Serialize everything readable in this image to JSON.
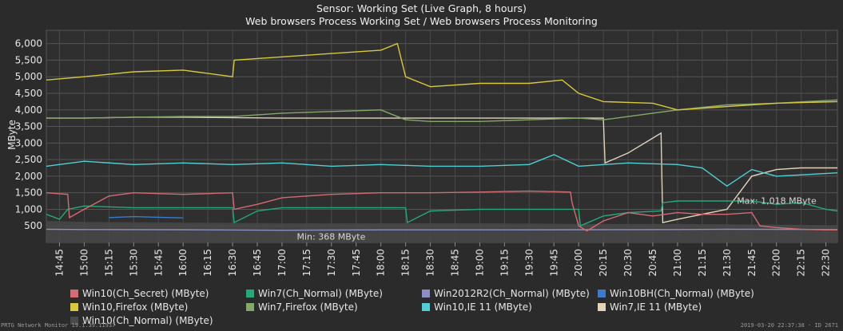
{
  "header": {
    "title": "Sensor: Working Set (Live Graph, 8 hours)",
    "subtitle": "Web browsers Process Working Set / Web browsers Process Monitoring"
  },
  "footer": {
    "left": "PRTG Network Monitor 19.1.39.11937",
    "right": "2019-03-20 22:37:38 - ID 2671"
  },
  "chart_data": {
    "type": "line",
    "title": "Sensor: Working Set (Live Graph, 8 hours)",
    "subtitle": "Web browsers Process Working Set / Web browsers Process Monitoring",
    "ylabel": "MByte",
    "ylim": [
      0,
      6400
    ],
    "yticks": [
      500,
      1000,
      1500,
      2000,
      2500,
      3000,
      3500,
      4000,
      4500,
      5000,
      5500,
      6000
    ],
    "ytick_labels": [
      "500",
      "1,000",
      "1,500",
      "2,000",
      "2,500",
      "3,000",
      "3,500",
      "4,000",
      "4,500",
      "5,000",
      "5,500",
      "6,000"
    ],
    "x_labels": [
      "14:45",
      "15:00",
      "15:15",
      "15:30",
      "15:45",
      "16:00",
      "16:15",
      "16:30",
      "16:45",
      "17:00",
      "17:15",
      "17:30",
      "17:45",
      "18:00",
      "18:15",
      "18:30",
      "18:45",
      "19:00",
      "19:15",
      "19:30",
      "19:45",
      "20:00",
      "20:15",
      "20:30",
      "20:45",
      "21:00",
      "21:15",
      "21:30",
      "21:45",
      "22:00",
      "22:15",
      "22:30"
    ],
    "x_start": "14:37",
    "x_end": "22:37",
    "grid": true,
    "annotations": [
      {
        "text": "Min: 368 MByte",
        "x": "17:09",
        "y": 368
      },
      {
        "text": "Max: 1,018 MByte",
        "x": "21:36",
        "y": 1018
      }
    ],
    "legend": [
      "Win10(Ch_Secret) (MByte)",
      "Win7(Ch_Normal) (MByte)",
      "Win2012R2(Ch_Normal) (MByte)",
      "Win10BH(Ch_Normal) (MByte)",
      "Win10,Firefox (MByte)",
      "Win7,Firefox (MByte)",
      "Win10,IE 11 (MByte)",
      "Win7,IE 11 (MByte)",
      "Win10(Ch_Normal) (MByte)"
    ],
    "series": [
      {
        "name": "Win10(Ch_Secret) (MByte)",
        "color": "#d36b72",
        "points": [
          [
            "14:37",
            1500
          ],
          [
            "14:50",
            1450
          ],
          [
            "14:51",
            750
          ],
          [
            "15:00",
            1000
          ],
          [
            "15:15",
            1400
          ],
          [
            "15:30",
            1500
          ],
          [
            "16:00",
            1450
          ],
          [
            "16:30",
            1500
          ],
          [
            "16:31",
            1000
          ],
          [
            "16:45",
            1150
          ],
          [
            "17:00",
            1350
          ],
          [
            "17:30",
            1450
          ],
          [
            "18:00",
            1500
          ],
          [
            "18:30",
            1500
          ],
          [
            "19:00",
            1520
          ],
          [
            "19:30",
            1550
          ],
          [
            "19:55",
            1520
          ],
          [
            "19:56",
            1200
          ],
          [
            "20:00",
            500
          ],
          [
            "20:05",
            350
          ],
          [
            "20:15",
            650
          ],
          [
            "20:30",
            900
          ],
          [
            "20:45",
            800
          ],
          [
            "21:00",
            900
          ],
          [
            "21:15",
            850
          ],
          [
            "21:30",
            850
          ],
          [
            "21:45",
            900
          ],
          [
            "21:50",
            500
          ],
          [
            "22:00",
            450
          ],
          [
            "22:15",
            400
          ],
          [
            "22:30",
            380
          ],
          [
            "22:37",
            380
          ]
        ]
      },
      {
        "name": "Win7(Ch_Normal) (MByte)",
        "color": "#24a979",
        "points": [
          [
            "14:37",
            850
          ],
          [
            "14:45",
            700
          ],
          [
            "14:50",
            1000
          ],
          [
            "15:00",
            1100
          ],
          [
            "15:30",
            1050
          ],
          [
            "16:00",
            1050
          ],
          [
            "16:30",
            1050
          ],
          [
            "16:31",
            600
          ],
          [
            "16:45",
            950
          ],
          [
            "17:00",
            1050
          ],
          [
            "17:30",
            1050
          ],
          [
            "17:45",
            1050
          ],
          [
            "18:00",
            1050
          ],
          [
            "18:15",
            1050
          ],
          [
            "18:16",
            600
          ],
          [
            "18:30",
            950
          ],
          [
            "19:00",
            1000
          ],
          [
            "19:30",
            1000
          ],
          [
            "20:00",
            1000
          ],
          [
            "20:01",
            500
          ],
          [
            "20:15",
            800
          ],
          [
            "20:30",
            900
          ],
          [
            "20:50",
            950
          ],
          [
            "20:51",
            1200
          ],
          [
            "21:00",
            1250
          ],
          [
            "21:15",
            1250
          ],
          [
            "21:30",
            1250
          ],
          [
            "21:45",
            1250
          ],
          [
            "22:00",
            1150
          ],
          [
            "22:15",
            1200
          ],
          [
            "22:30",
            1000
          ],
          [
            "22:37",
            950
          ]
        ]
      },
      {
        "name": "Win2012R2(Ch_Normal) (MByte)",
        "color": "#8d8fc4",
        "points": [
          [
            "14:37",
            400
          ],
          [
            "15:00",
            390
          ],
          [
            "16:00",
            385
          ],
          [
            "17:00",
            368
          ],
          [
            "18:00",
            380
          ],
          [
            "19:00",
            380
          ],
          [
            "20:00",
            385
          ],
          [
            "21:00",
            390
          ],
          [
            "21:30",
            400
          ],
          [
            "22:00",
            395
          ],
          [
            "22:37",
            390
          ]
        ]
      },
      {
        "name": "Win10BH(Ch_Normal) (MByte)",
        "color": "#3d7ac9",
        "points": [
          [
            "15:15",
            750
          ],
          [
            "15:30",
            780
          ],
          [
            "15:45",
            760
          ],
          [
            "16:00",
            740
          ]
        ]
      },
      {
        "name": "Win10,Firefox (MByte)",
        "color": "#d7c93a",
        "points": [
          [
            "14:37",
            4900
          ],
          [
            "15:00",
            5000
          ],
          [
            "15:30",
            5150
          ],
          [
            "16:00",
            5200
          ],
          [
            "16:30",
            5000
          ],
          [
            "16:31",
            5500
          ],
          [
            "17:00",
            5600
          ],
          [
            "17:30",
            5700
          ],
          [
            "18:00",
            5800
          ],
          [
            "18:10",
            6000
          ],
          [
            "18:15",
            5000
          ],
          [
            "18:30",
            4700
          ],
          [
            "19:00",
            4800
          ],
          [
            "19:30",
            4800
          ],
          [
            "19:50",
            4900
          ],
          [
            "20:00",
            4500
          ],
          [
            "20:15",
            4250
          ],
          [
            "20:45",
            4200
          ],
          [
            "21:00",
            4000
          ],
          [
            "21:30",
            4100
          ],
          [
            "22:00",
            4200
          ],
          [
            "22:37",
            4250
          ]
        ]
      },
      {
        "name": "Win7,Firefox (MByte)",
        "color": "#84a869",
        "points": [
          [
            "14:37",
            3750
          ],
          [
            "15:00",
            3750
          ],
          [
            "15:30",
            3780
          ],
          [
            "16:00",
            3800
          ],
          [
            "16:30",
            3800
          ],
          [
            "17:00",
            3900
          ],
          [
            "17:30",
            3950
          ],
          [
            "18:00",
            4000
          ],
          [
            "18:15",
            3700
          ],
          [
            "18:30",
            3650
          ],
          [
            "19:00",
            3650
          ],
          [
            "19:30",
            3700
          ],
          [
            "20:00",
            3750
          ],
          [
            "20:15",
            3700
          ],
          [
            "20:45",
            3900
          ],
          [
            "21:00",
            4000
          ],
          [
            "21:30",
            4150
          ],
          [
            "22:00",
            4200
          ],
          [
            "22:37",
            4300
          ]
        ]
      },
      {
        "name": "Win10,IE 11 (MByte)",
        "color": "#50d0d4",
        "points": [
          [
            "14:37",
            2300
          ],
          [
            "15:00",
            2450
          ],
          [
            "15:30",
            2350
          ],
          [
            "16:00",
            2400
          ],
          [
            "16:30",
            2350
          ],
          [
            "17:00",
            2400
          ],
          [
            "17:30",
            2300
          ],
          [
            "18:00",
            2350
          ],
          [
            "18:30",
            2300
          ],
          [
            "19:00",
            2300
          ],
          [
            "19:30",
            2350
          ],
          [
            "19:45",
            2650
          ],
          [
            "20:00",
            2300
          ],
          [
            "20:30",
            2400
          ],
          [
            "21:00",
            2350
          ],
          [
            "21:15",
            2250
          ],
          [
            "21:30",
            1700
          ],
          [
            "21:45",
            2200
          ],
          [
            "22:00",
            2000
          ],
          [
            "22:37",
            2100
          ]
        ]
      },
      {
        "name": "Win7,IE 11 (MByte)",
        "color": "#e2d3b9",
        "points": [
          [
            "14:37",
            3750
          ],
          [
            "15:00",
            3750
          ],
          [
            "15:30",
            3780
          ],
          [
            "16:00",
            3780
          ],
          [
            "17:00",
            3750
          ],
          [
            "18:00",
            3750
          ],
          [
            "19:00",
            3750
          ],
          [
            "20:00",
            3750
          ],
          [
            "20:15",
            3750
          ],
          [
            "20:16",
            2400
          ],
          [
            "20:30",
            2700
          ],
          [
            "20:45",
            3150
          ],
          [
            "20:50",
            3300
          ],
          [
            "20:51",
            600
          ],
          [
            "21:00",
            700
          ],
          [
            "21:30",
            1000
          ],
          [
            "21:45",
            2000
          ],
          [
            "22:00",
            2200
          ],
          [
            "22:15",
            2250
          ],
          [
            "22:37",
            2250
          ]
        ]
      },
      {
        "name": "Win10(Ch_Normal) (MByte)",
        "color": "#4a4a4a",
        "points": [
          [
            "14:37",
            650
          ],
          [
            "15:00",
            620
          ],
          [
            "16:00",
            600
          ],
          [
            "17:00",
            580
          ],
          [
            "18:00",
            580
          ],
          [
            "19:00",
            580
          ],
          [
            "20:00",
            560
          ],
          [
            "21:00",
            560
          ],
          [
            "22:00",
            540
          ],
          [
            "22:37",
            520
          ]
        ]
      }
    ]
  }
}
